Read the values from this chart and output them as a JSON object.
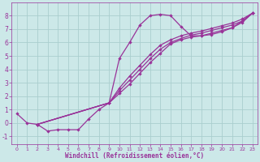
{
  "bg_color": "#cce8e8",
  "grid_color": "#aacece",
  "line_color": "#993399",
  "xlabel": "Windchill (Refroidissement éolien,°C)",
  "xlabel_color": "#993399",
  "tick_color": "#993399",
  "xlim": [
    -0.5,
    23.5
  ],
  "ylim": [
    -1.6,
    9.0
  ],
  "xticks": [
    0,
    1,
    2,
    3,
    4,
    5,
    6,
    7,
    8,
    9,
    10,
    11,
    12,
    13,
    14,
    15,
    16,
    17,
    18,
    19,
    20,
    21,
    22,
    23
  ],
  "yticks": [
    -1,
    0,
    1,
    2,
    3,
    4,
    5,
    6,
    7,
    8
  ],
  "series1_x": [
    0,
    1,
    2,
    3,
    4,
    5,
    6,
    7,
    8,
    9,
    10,
    11,
    12,
    13,
    14,
    15,
    16,
    17,
    18,
    19,
    20,
    21,
    22,
    23
  ],
  "series1_y": [
    0.7,
    0.0,
    -0.1,
    -0.6,
    -0.5,
    -0.5,
    -0.5,
    0.3,
    1.0,
    1.5,
    4.8,
    6.0,
    7.3,
    8.0,
    8.1,
    8.0,
    7.2,
    6.5,
    6.5,
    6.6,
    6.8,
    7.1,
    7.6,
    8.2
  ],
  "series2_x": [
    2,
    9,
    10,
    11,
    12,
    13,
    14,
    15,
    16,
    17,
    18,
    19,
    20,
    21,
    22,
    23
  ],
  "series2_y": [
    -0.1,
    1.5,
    2.2,
    2.9,
    3.7,
    4.5,
    5.2,
    5.9,
    6.2,
    6.4,
    6.5,
    6.7,
    6.9,
    7.1,
    7.5,
    8.2
  ],
  "series3_x": [
    2,
    9,
    10,
    11,
    12,
    13,
    14,
    15,
    16,
    17,
    18,
    19,
    20,
    21,
    22,
    23
  ],
  "series3_y": [
    -0.1,
    1.5,
    2.4,
    3.2,
    4.0,
    4.8,
    5.5,
    6.0,
    6.3,
    6.55,
    6.7,
    6.9,
    7.1,
    7.3,
    7.6,
    8.2
  ],
  "series4_x": [
    2,
    9,
    10,
    11,
    12,
    13,
    14,
    15,
    16,
    17,
    18,
    19,
    20,
    21,
    22,
    23
  ],
  "series4_y": [
    -0.1,
    1.5,
    2.6,
    3.5,
    4.3,
    5.1,
    5.8,
    6.2,
    6.5,
    6.7,
    6.85,
    7.05,
    7.25,
    7.45,
    7.75,
    8.2
  ]
}
